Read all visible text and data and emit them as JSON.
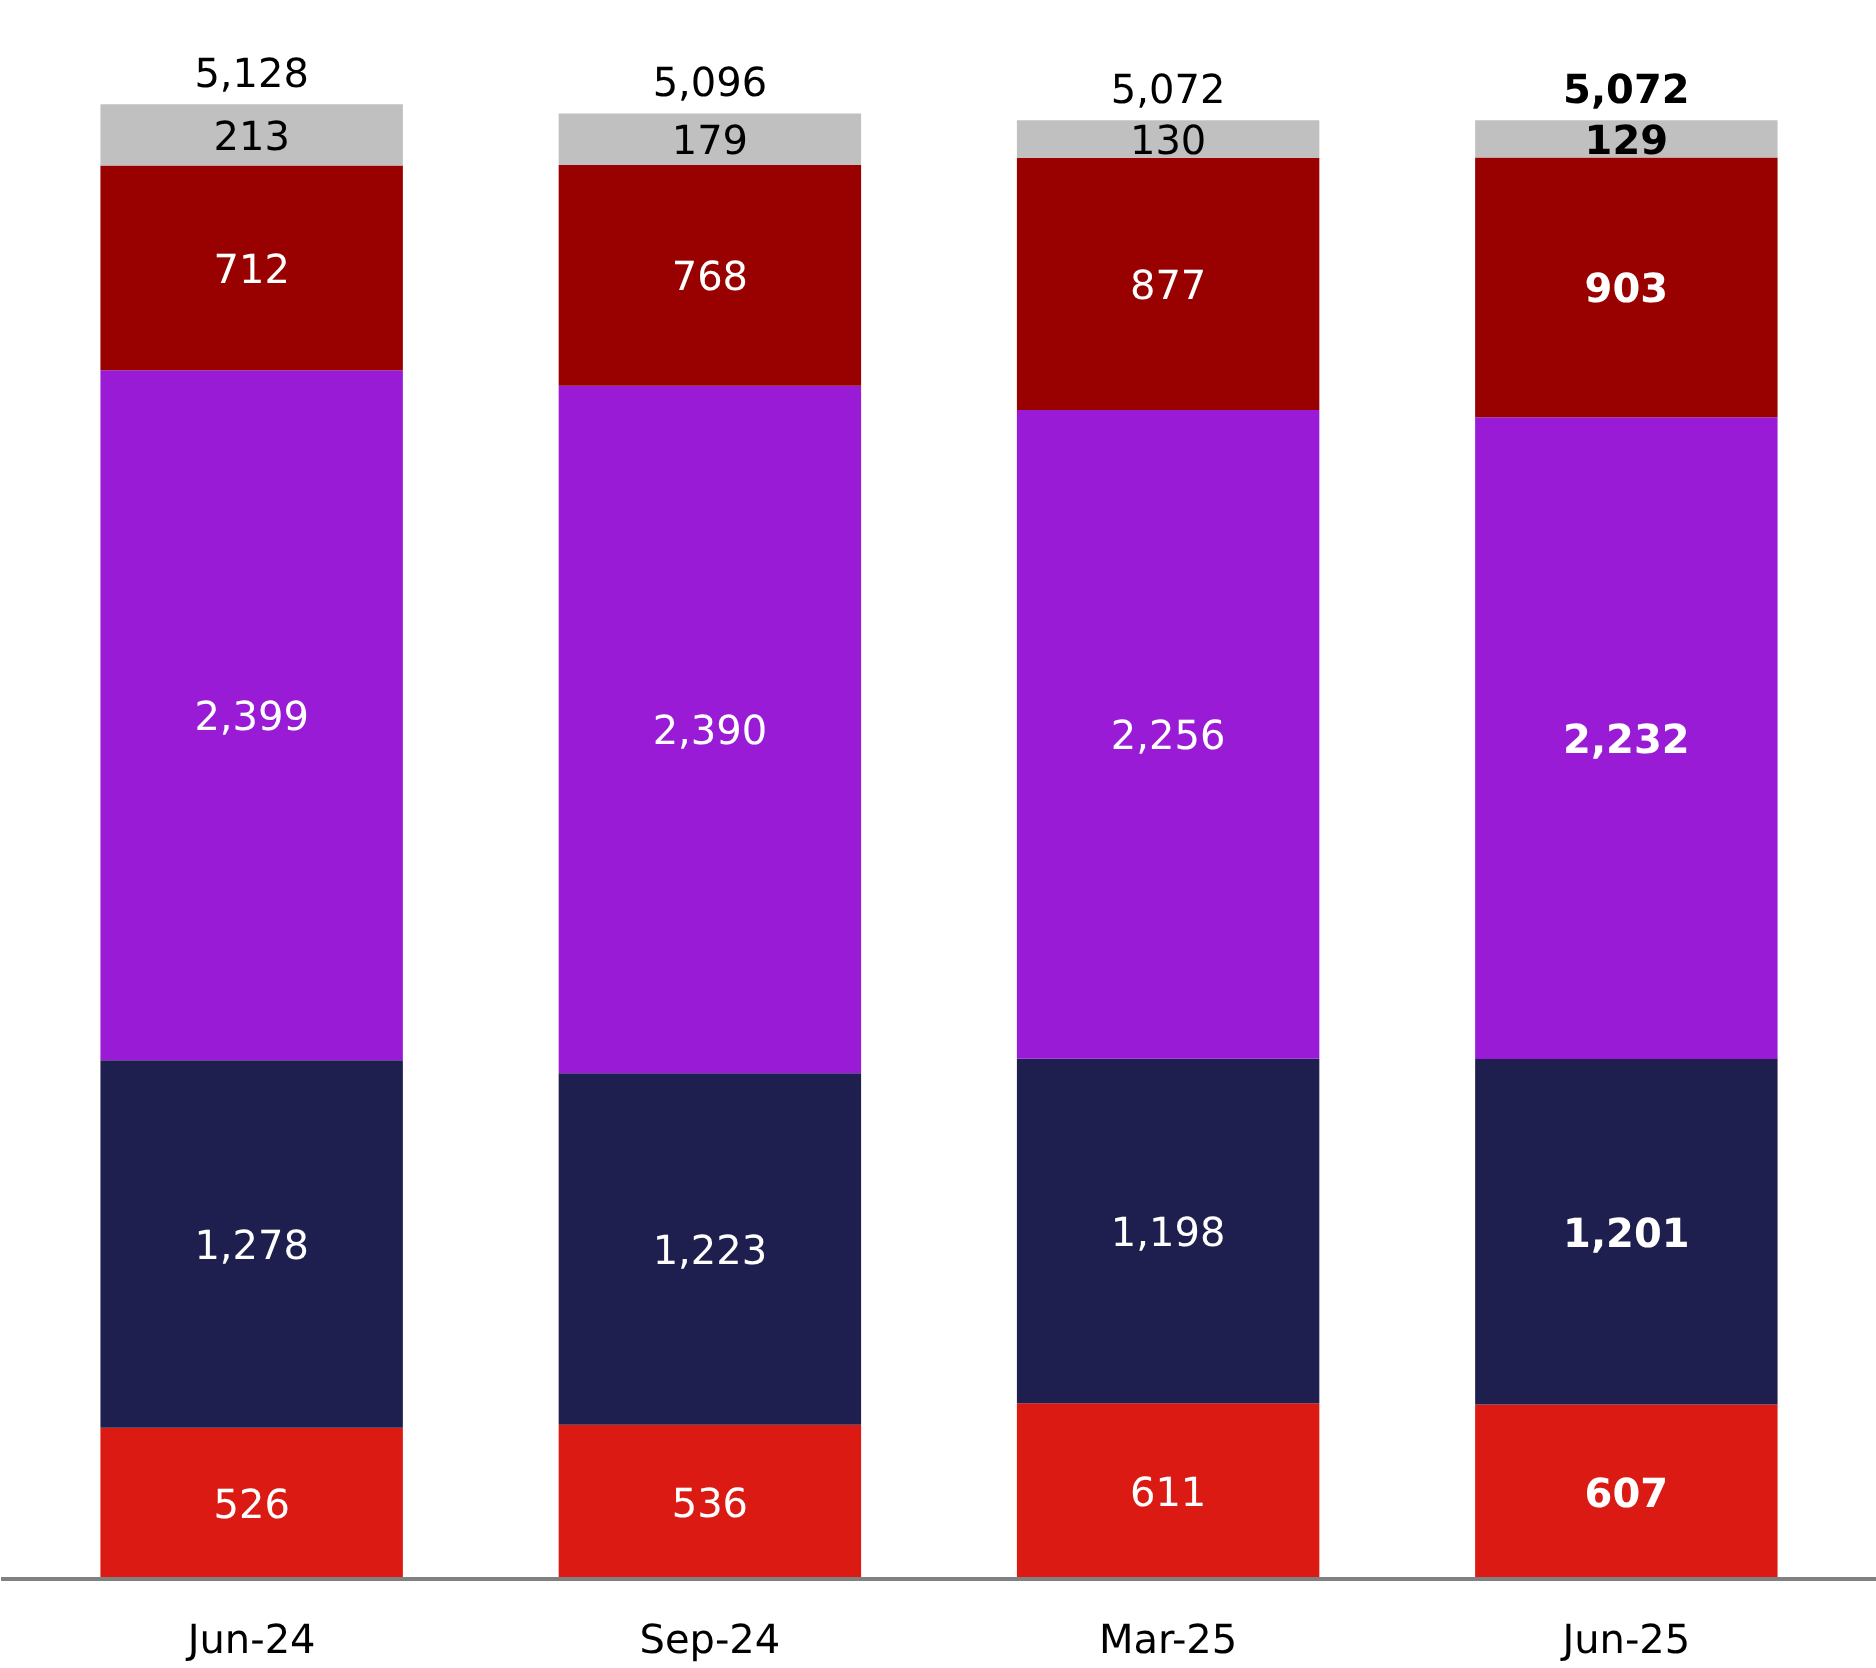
{
  "chart_data": {
    "type": "bar",
    "stacked": true,
    "tick_labels": "x",
    "categories": [
      "Jun-24",
      "Sep-24",
      "Mar-25",
      "Jun-25"
    ],
    "series": [
      {
        "color": "#da1a13",
        "values": [
          526,
          536,
          611,
          607
        ],
        "value_labels": [
          "526",
          "536",
          "611",
          "607"
        ]
      },
      {
        "color": "#1f1f4f",
        "values": [
          1278,
          1223,
          1198,
          1201
        ],
        "value_labels": [
          "1,278",
          "1,223",
          "1,198",
          "1,201"
        ]
      },
      {
        "color": "#9a1bd6",
        "values": [
          2399,
          2390,
          2256,
          2232
        ],
        "value_labels": [
          "2,399",
          "2,390",
          "2,256",
          "2,232"
        ]
      },
      {
        "color": "#990000",
        "values": [
          712,
          768,
          877,
          903
        ],
        "value_labels": [
          "712",
          "768",
          "877",
          "903"
        ]
      },
      {
        "color": "#c0c0c0",
        "values": [
          213,
          179,
          130,
          129
        ],
        "value_labels": [
          "213",
          "179",
          "130",
          "129"
        ]
      }
    ],
    "totals": [
      "5,128",
      "5,096",
      "5,072",
      "5,072"
    ]
  }
}
